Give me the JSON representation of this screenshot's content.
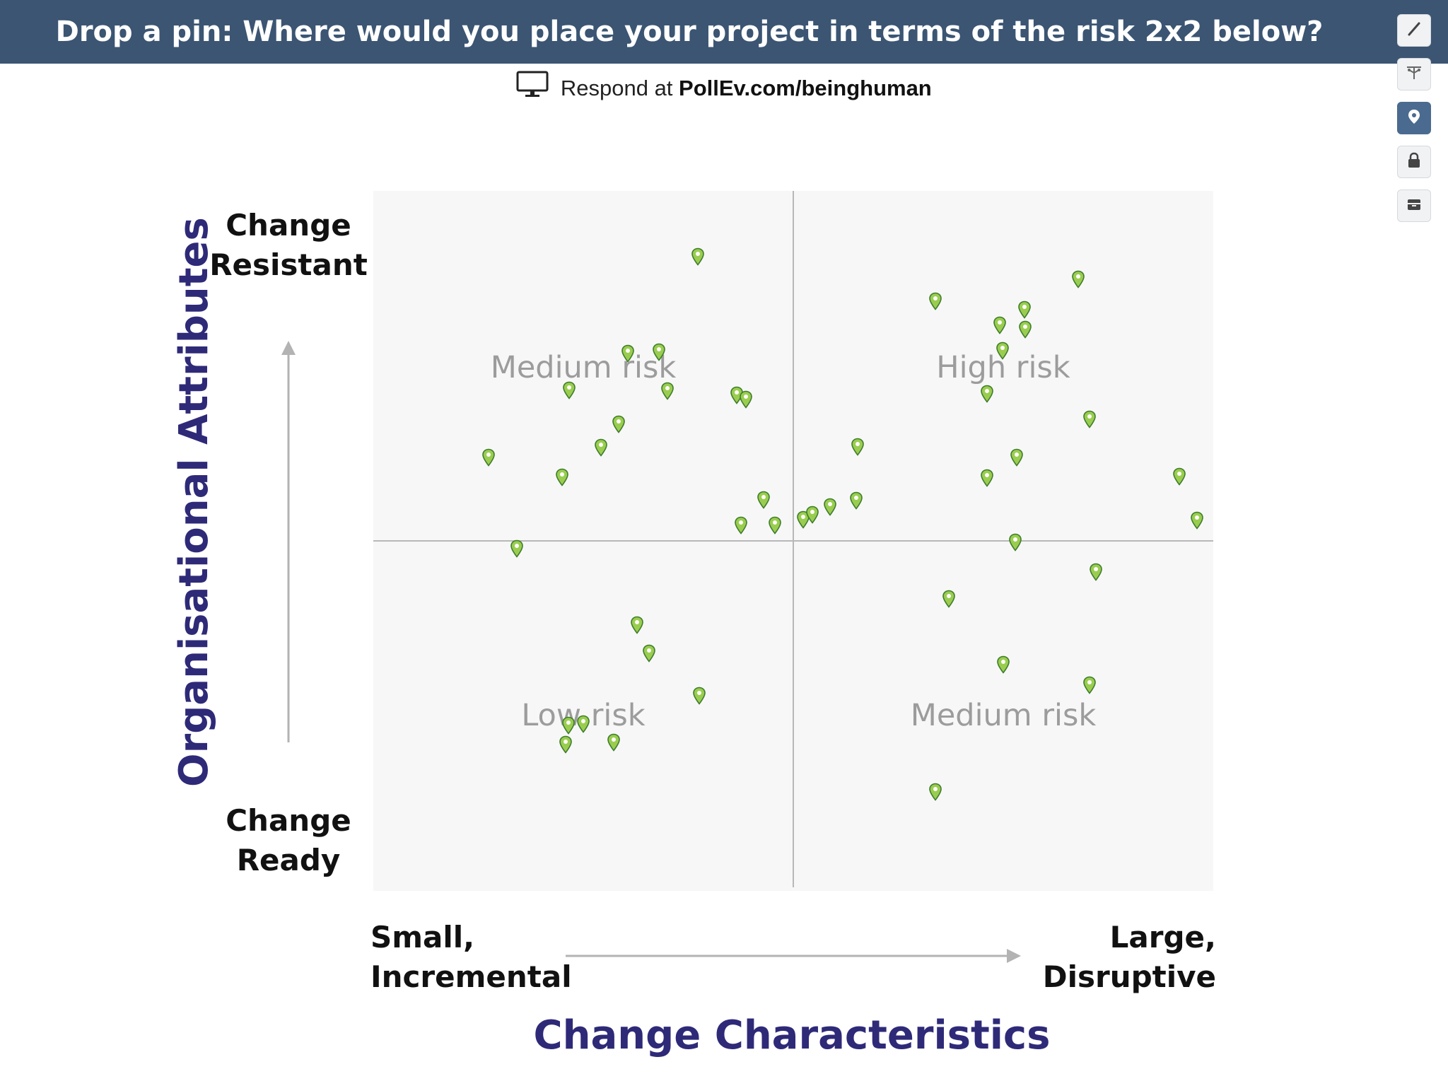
{
  "header": {
    "title": "Drop a pin: Where would you place your project in terms of the risk 2x2 below?"
  },
  "respond": {
    "prefix": "Respond at",
    "url": "PollEv.com/beinghuman"
  },
  "toolbar": {
    "tools": [
      "pencil-icon",
      "filter-icon",
      "map-pin-icon",
      "lock-icon",
      "archive-icon"
    ]
  },
  "chart": {
    "y_axis_title": "Organisational Attributes",
    "x_axis_title": "Change Characteristics",
    "y_top": [
      "Change",
      "Resistant"
    ],
    "y_bottom": [
      "Change",
      "Ready"
    ],
    "x_left": [
      "Small,",
      "Incremental"
    ],
    "x_right": [
      "Large,",
      "Disruptive"
    ],
    "quadrants": {
      "top_left": "Medium risk",
      "top_right": "High risk",
      "bottom_left": "Low risk",
      "bottom_right": "Medium risk"
    }
  },
  "colors": {
    "header_bg": "#3b5573",
    "title_color": "#2e2a78",
    "pin_fill": "#9acd4f",
    "pin_stroke": "#3e7d2a"
  },
  "chart_data": {
    "type": "scatter",
    "title": "Drop a pin: Where would you place your project in terms of the risk 2x2 below?",
    "xlabel": "Change Characteristics",
    "ylabel": "Organisational Attributes",
    "xlim": [
      0,
      1
    ],
    "ylim": [
      0,
      1
    ],
    "x": [
      0.386,
      0.225,
      0.303,
      0.233,
      0.34,
      0.35,
      0.433,
      0.444,
      0.292,
      0.271,
      0.137,
      0.171,
      0.465,
      0.438,
      0.478,
      0.512,
      0.523,
      0.544,
      0.575,
      0.577,
      0.669,
      0.746,
      0.776,
      0.775,
      0.749,
      0.731,
      0.839,
      0.853,
      0.766,
      0.731,
      0.96,
      0.981,
      0.764,
      0.86,
      0.685,
      0.314,
      0.328,
      0.388,
      0.232,
      0.25,
      0.229,
      0.286,
      0.75,
      0.853,
      0.669
    ],
    "y": [
      0.906,
      0.591,
      0.768,
      0.715,
      0.77,
      0.714,
      0.708,
      0.702,
      0.667,
      0.633,
      0.619,
      0.489,
      0.559,
      0.522,
      0.522,
      0.53,
      0.537,
      0.548,
      0.558,
      0.634,
      0.842,
      0.808,
      0.802,
      0.83,
      0.772,
      0.71,
      0.874,
      0.674,
      0.619,
      0.59,
      0.592,
      0.529,
      0.498,
      0.456,
      0.417,
      0.38,
      0.339,
      0.279,
      0.236,
      0.238,
      0.209,
      0.212,
      0.323,
      0.294,
      0.141
    ]
  }
}
